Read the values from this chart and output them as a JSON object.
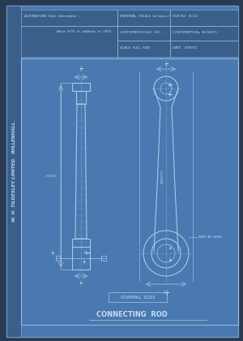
{
  "bg_color": "#2a3a50",
  "blueprint_bg": "#4a78b0",
  "sidebar_bg": "#3a5f8a",
  "header_bg": "#3a5f8a",
  "border_color": "#6a98c8",
  "line_color": "#a8c8e8",
  "dim_color": "#b0cce0",
  "text_color": "#c8dff0",
  "sidebar_text": "W. H. TILDESLEY LIMITED.  WILLENHALL.",
  "title": "CONNECTING  ROD",
  "stamp_label": "STAMPING  SIZES",
  "header_row1_left": "ALTERATIONS  Date  alternation  :-",
  "header_row2_left": "Allow  0.01  in  addition  to  1875",
  "header_mat": "MATERIAL  H.B.A.S. (or equiv.)",
  "header_fold": "CUSTOMER'S FOLD  (S2)",
  "header_scale": "SCALE  FULL  SIZE",
  "header_our_no": "OUR NO   B./12",
  "header_cust_no": "CUSTOMER'S No  W.(9227)",
  "header_date": "DATE   19/8/32",
  "fig_width": 3.0,
  "fig_height": 4.2,
  "dpi": 100
}
